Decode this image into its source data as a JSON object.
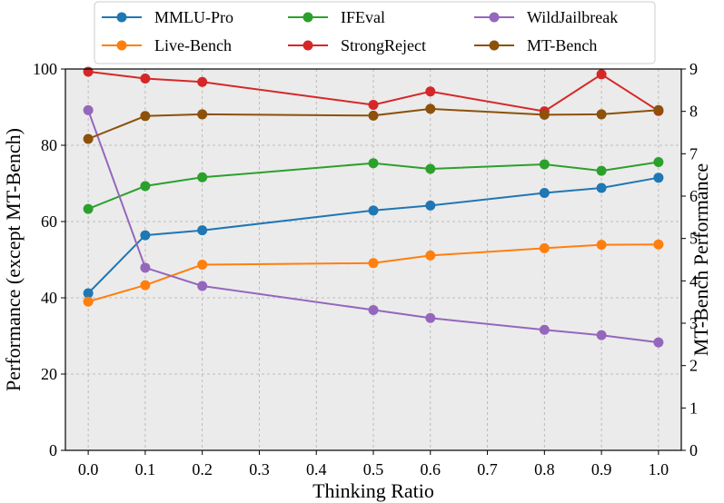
{
  "chart_data": {
    "type": "line",
    "x": [
      0.0,
      0.1,
      0.2,
      0.5,
      0.6,
      0.8,
      0.9,
      1.0
    ],
    "xticks": [
      "0.0",
      "0.1",
      "0.2",
      "0.3",
      "0.4",
      "0.5",
      "0.6",
      "0.7",
      "0.8",
      "0.9",
      "1.0"
    ],
    "xlabel": "Thinking Ratio",
    "ylabel": "Performance (except MT-Bench)",
    "ylabel_right": "MT-Bench Performance",
    "xlim": [
      -0.04,
      1.04
    ],
    "ylim": [
      0,
      100
    ],
    "ylim_right": [
      0,
      9
    ],
    "yticks": [
      "0",
      "20",
      "40",
      "60",
      "80",
      "100"
    ],
    "yticks_right": [
      "0",
      "1",
      "2",
      "3",
      "4",
      "5",
      "6",
      "7",
      "8",
      "9"
    ],
    "grid": true,
    "legend_position": "top-center",
    "series": [
      {
        "name": "MMLU-Pro",
        "color": "#1f77b4",
        "axis": "left",
        "values": [
          41.2,
          56.4,
          57.7,
          62.9,
          64.2,
          67.5,
          68.8,
          71.5
        ]
      },
      {
        "name": "Live-Bench",
        "color": "#ff7f0e",
        "axis": "left",
        "values": [
          39.0,
          43.3,
          48.7,
          49.1,
          51.1,
          53.0,
          53.9,
          54.0
        ]
      },
      {
        "name": "IFEval",
        "color": "#2ca02c",
        "axis": "left",
        "values": [
          63.3,
          69.3,
          71.6,
          75.3,
          73.8,
          75.0,
          73.3,
          75.6
        ]
      },
      {
        "name": "StrongReject",
        "color": "#d62728",
        "axis": "left",
        "values": [
          99.3,
          97.5,
          96.6,
          90.6,
          94.1,
          88.9,
          98.6,
          89.0
        ]
      },
      {
        "name": "WildJailbreak",
        "color": "#9467bd",
        "axis": "left",
        "values": [
          89.2,
          47.9,
          43.1,
          36.8,
          34.7,
          31.6,
          30.2,
          28.3
        ]
      },
      {
        "name": "MT-Bench",
        "color": "#8c510a",
        "axis": "right",
        "values": [
          7.35,
          7.89,
          7.93,
          7.9,
          8.06,
          7.92,
          7.93,
          8.03
        ]
      }
    ]
  }
}
